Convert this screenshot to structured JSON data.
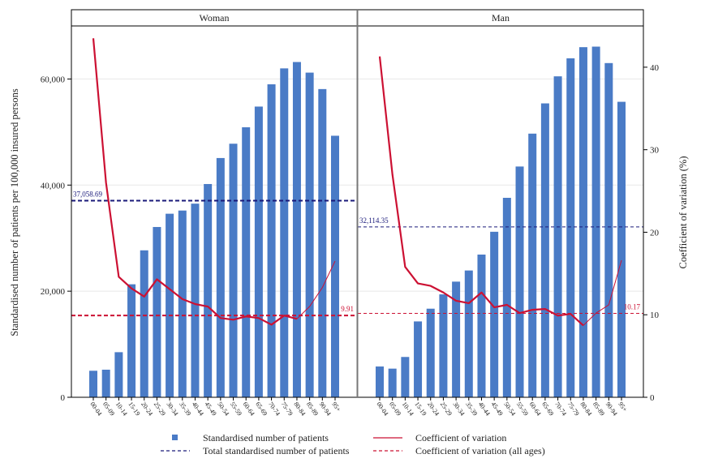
{
  "chart_data": {
    "type": "bar",
    "panels": [
      "Woman",
      "Man"
    ],
    "categories": [
      "00-04",
      "05-09",
      "10-14",
      "15-19",
      "20-24",
      "25-29",
      "30-34",
      "35-39",
      "40-44",
      "45-49",
      "50-54",
      "55-59",
      "60-64",
      "65-69",
      "70-74",
      "75-79",
      "80-84",
      "85-89",
      "90-94",
      "95+"
    ],
    "y_left_label": "Standardised number of patients per 100,000 insured persons",
    "y_right_label": "Coefficient of variation (%)",
    "y_left_lim": [
      0,
      70000
    ],
    "y_left_ticks": [
      0,
      20000,
      40000,
      60000
    ],
    "y_left_tick_labels": [
      "0",
      "20,000",
      "40,000",
      "60,000"
    ],
    "y_right_lim": [
      0,
      45
    ],
    "y_right_ticks": [
      0,
      10,
      20,
      30,
      40
    ],
    "y_right_tick_labels": [
      "0",
      "10",
      "20",
      "30",
      "40"
    ],
    "series": [
      {
        "name": "Standardised number of patients",
        "panel": "Woman",
        "values": [
          5000,
          5200,
          8500,
          21300,
          27700,
          32100,
          34600,
          35200,
          36500,
          40200,
          45100,
          47800,
          50900,
          54800,
          59000,
          62000,
          63200,
          61200,
          58100,
          49300
        ]
      },
      {
        "name": "Standardised number of patients",
        "panel": "Man",
        "values": [
          5800,
          5400,
          7600,
          14300,
          16700,
          19400,
          21800,
          23900,
          26900,
          31200,
          37600,
          43500,
          49700,
          55400,
          60500,
          63900,
          66000,
          66100,
          63000,
          55700
        ]
      },
      {
        "name": "Coefficient of variation",
        "panel": "Woman",
        "values": [
          43.5,
          26,
          14.6,
          13.2,
          12.2,
          14.3,
          13.1,
          11.9,
          11.3,
          11.0,
          9.6,
          9.4,
          9.8,
          9.6,
          8.8,
          9.9,
          9.5,
          11.0,
          13.3,
          16.5
        ]
      },
      {
        "name": "Coefficient of variation",
        "panel": "Man",
        "values": [
          41.3,
          27,
          15.8,
          13.8,
          13.5,
          12.7,
          11.7,
          11.4,
          12.7,
          10.9,
          11.2,
          10.2,
          10.6,
          10.7,
          9.9,
          10.1,
          8.7,
          10.2,
          11.2,
          16.6
        ]
      }
    ],
    "reference_lines": [
      {
        "name": "Total standardised number of patients",
        "panel": "Woman",
        "value": 37058.69,
        "label": "37,058.69"
      },
      {
        "name": "Total standardised number of patients",
        "panel": "Man",
        "value": 32114.35,
        "label": "32,114.35"
      },
      {
        "name": "Coefficient of variation (all ages)",
        "panel": "Woman",
        "value": 9.91,
        "label": "9.91"
      },
      {
        "name": "Coefficient of variation (all ages)",
        "panel": "Man",
        "value": 10.17,
        "label": "10.17"
      }
    ],
    "cv_heavy_until_index": 17,
    "legend_position": "bottom",
    "grid": true
  },
  "legend": {
    "bars": "Standardised number of patients",
    "cv": "Coefficient of variation",
    "total": "Total standardised number of patients",
    "cv_all": "Coefficient of variation (all ages)"
  },
  "colors": {
    "bar": "#4a7bc6",
    "cv": "#cc1133",
    "total_line": "#1a1a7a",
    "cv_all_line": "#cc1133",
    "panel_border": "#000000",
    "grid": "#e8e8e8"
  }
}
